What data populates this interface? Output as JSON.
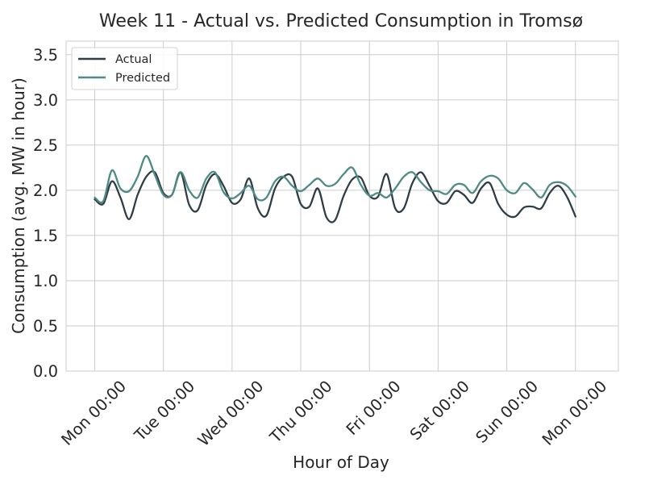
{
  "chart_data": {
    "type": "line",
    "title": "Week 11 - Actual vs. Predicted Consumption in Tromsø",
    "xlabel": "Hour of Day",
    "ylabel": "Consumption (avg. MW in hour)",
    "ylim": [
      0,
      3.65
    ],
    "xlim": [
      -10,
      183
    ],
    "yticks": [
      0.0,
      0.5,
      1.0,
      1.5,
      2.0,
      2.5,
      3.0,
      3.5
    ],
    "ytick_labels": [
      "0.0",
      "0.5",
      "1.0",
      "1.5",
      "2.0",
      "2.5",
      "3.0",
      "3.5"
    ],
    "xticks": [
      0,
      24,
      48,
      72,
      96,
      120,
      144,
      168
    ],
    "xtick_labels": [
      "Mon 00:00",
      "Tue 00:00",
      "Wed 00:00",
      "Thu 00:00",
      "Fri 00:00",
      "Sat 00:00",
      "Sun 00:00",
      "Mon 00:00"
    ],
    "grid": true,
    "legend_position": "top-left",
    "sample_hours": [
      0,
      3,
      6,
      9,
      12,
      15,
      18,
      21,
      24,
      27,
      30,
      33,
      36,
      39,
      42,
      45,
      48,
      51,
      54,
      57,
      60,
      63,
      66,
      69,
      72,
      75,
      78,
      81,
      84,
      87,
      90,
      93,
      96,
      99,
      102,
      105,
      108,
      111,
      114,
      117,
      120,
      123,
      126,
      129,
      132,
      135,
      138,
      141,
      144,
      147,
      150,
      153,
      156,
      159,
      162,
      165,
      168
    ],
    "series": [
      {
        "name": "Actual",
        "color": "#2f3e46",
        "values": [
          1.9,
          1.85,
          2.1,
          1.92,
          1.68,
          1.95,
          2.15,
          2.2,
          1.97,
          1.95,
          2.2,
          1.84,
          1.78,
          2.06,
          2.18,
          2.05,
          1.86,
          1.9,
          2.13,
          1.8,
          1.72,
          2.02,
          2.15,
          2.15,
          1.85,
          1.82,
          2.02,
          1.7,
          1.67,
          1.94,
          2.12,
          2.14,
          1.94,
          1.93,
          2.18,
          1.8,
          1.8,
          2.08,
          2.2,
          2.05,
          1.88,
          1.86,
          1.99,
          1.95,
          1.86,
          2.02,
          2.08,
          1.85,
          1.73,
          1.71,
          1.81,
          1.82,
          1.8,
          1.97,
          2.05,
          1.93,
          1.71
        ]
      },
      {
        "name": "Predicted",
        "color": "#4f8a85",
        "values": [
          1.92,
          1.88,
          2.22,
          2.02,
          1.99,
          2.15,
          2.38,
          2.17,
          1.95,
          1.95,
          2.2,
          2.0,
          1.92,
          2.13,
          2.2,
          1.98,
          1.91,
          1.97,
          2.05,
          1.9,
          1.92,
          2.1,
          2.15,
          2.05,
          1.99,
          2.06,
          2.13,
          2.05,
          2.07,
          2.18,
          2.25,
          2.06,
          1.94,
          1.97,
          1.92,
          2.02,
          2.15,
          2.2,
          2.09,
          2.0,
          1.99,
          1.96,
          2.06,
          2.06,
          1.97,
          2.1,
          2.16,
          2.13,
          2.0,
          1.97,
          2.08,
          2.01,
          1.92,
          2.06,
          2.09,
          2.05,
          1.93
        ]
      }
    ]
  }
}
